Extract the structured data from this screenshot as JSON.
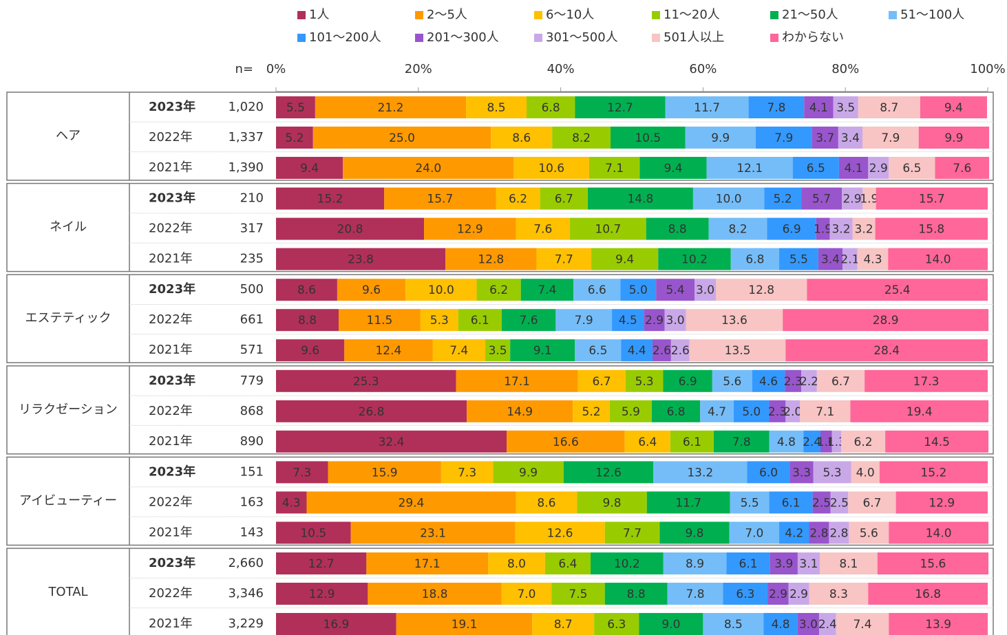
{
  "chart_data": {
    "type": "stacked_barh",
    "n_header": "n=",
    "groups": [
      "ヘア",
      "ネイル",
      "エステティック",
      "リラクゼーション",
      "アイビューティー",
      "TOTAL"
    ],
    "categories": [
      "2023年",
      "2022年",
      "2021年",
      "2023年",
      "2022年",
      "2021年",
      "2023年",
      "2022年",
      "2021年",
      "2023年",
      "2022年",
      "2021年",
      "2023年",
      "2022年",
      "2021年",
      "2023年",
      "2022年",
      "2021年"
    ],
    "n": [
      "1,020",
      "1,337",
      "1,390",
      "210",
      "317",
      "235",
      "500",
      "661",
      "571",
      "779",
      "868",
      "890",
      "151",
      "163",
      "143",
      "2,660",
      "3,346",
      "3,229"
    ],
    "xlim": [
      0,
      100
    ],
    "xticks": [
      {
        "value": 0,
        "label": "0%"
      },
      {
        "value": 20,
        "label": "20%"
      },
      {
        "value": 40,
        "label": "40%"
      },
      {
        "value": 60,
        "label": "60%"
      },
      {
        "value": 80,
        "label": "80%"
      },
      {
        "value": 100,
        "label": "100%"
      }
    ],
    "series": [
      {
        "name": "1人",
        "color": "#b0305a",
        "values": [
          5.5,
          5.2,
          9.4,
          15.2,
          20.8,
          23.8,
          8.6,
          8.8,
          9.6,
          25.3,
          26.8,
          32.4,
          7.3,
          4.3,
          10.5,
          12.7,
          12.9,
          16.9
        ],
        "value_labels": [
          "5.5",
          "5.2",
          "9.4",
          "15.2",
          "20.8",
          "23.8",
          "8.6",
          "8.8",
          "9.6",
          "25.3",
          "26.8",
          "32.4",
          "7.3",
          "4.3",
          "10.5",
          "12.7",
          "12.9",
          "16.9"
        ]
      },
      {
        "name": "2～5人",
        "color": "#ff9900",
        "values": [
          21.2,
          25.0,
          24.0,
          15.7,
          12.9,
          12.8,
          9.6,
          11.5,
          12.4,
          17.1,
          14.9,
          16.6,
          15.9,
          29.4,
          23.1,
          17.1,
          18.8,
          19.1
        ],
        "value_labels": [
          "21.2",
          "25.0",
          "24.0",
          "15.7",
          "12.9",
          "12.8",
          "9.6",
          "11.5",
          "12.4",
          "17.1",
          "14.9",
          "16.6",
          "15.9",
          "29.4",
          "23.1",
          "17.1",
          "18.8",
          "19.1"
        ]
      },
      {
        "name": "6～10人",
        "color": "#ffc000",
        "values": [
          8.5,
          8.6,
          10.6,
          6.2,
          7.6,
          7.7,
          10.0,
          5.3,
          7.4,
          6.7,
          5.2,
          6.4,
          7.3,
          8.6,
          12.6,
          8.0,
          7.0,
          8.7
        ],
        "value_labels": [
          "8.5",
          "8.6",
          "10.6",
          "6.2",
          "7.6",
          "7.7",
          "10.0",
          "5.3",
          "7.4",
          "6.7",
          "5.2",
          "6.4",
          "7.3",
          "8.6",
          "12.6",
          "8.0",
          "7.0",
          "8.7"
        ]
      },
      {
        "name": "11～20人",
        "color": "#99cc00",
        "values": [
          6.8,
          8.2,
          7.1,
          6.7,
          10.7,
          9.4,
          6.2,
          6.1,
          3.5,
          5.3,
          5.9,
          6.1,
          9.9,
          9.8,
          7.7,
          6.4,
          7.5,
          6.3
        ],
        "value_labels": [
          "6.8",
          "8.2",
          "7.1",
          "6.7",
          "10.7",
          "9.4",
          "6.2",
          "6.1",
          "3.5",
          "5.3",
          "5.9",
          "6.1",
          "9.9",
          "9.8",
          "7.7",
          "6.4",
          "7.5",
          "6.3"
        ]
      },
      {
        "name": "21～50人",
        "color": "#00b050",
        "values": [
          12.7,
          10.5,
          9.4,
          14.8,
          8.8,
          10.2,
          7.4,
          7.6,
          9.1,
          6.9,
          6.8,
          7.8,
          12.6,
          11.7,
          9.8,
          10.2,
          8.8,
          9.0
        ],
        "value_labels": [
          "12.7",
          "10.5",
          "9.4",
          "14.8",
          "8.8",
          "10.2",
          "7.4",
          "7.6",
          "9.1",
          "6.9",
          "6.8",
          "7.8",
          "12.6",
          "11.7",
          "9.8",
          "10.2",
          "8.8",
          "9.0"
        ]
      },
      {
        "name": "51～100人",
        "color": "#75bdf8",
        "values": [
          11.7,
          9.9,
          12.1,
          10.0,
          8.2,
          6.8,
          6.6,
          7.9,
          6.5,
          5.6,
          4.7,
          4.8,
          13.2,
          5.5,
          7.0,
          8.9,
          7.8,
          8.5
        ],
        "value_labels": [
          "11.7",
          "9.9",
          "12.1",
          "10.0",
          "8.2",
          "6.8",
          "6.6",
          "7.9",
          "6.5",
          "5.6",
          "4.7",
          "4.8",
          "13.2",
          "5.5",
          "7.0",
          "8.9",
          "7.8",
          "8.5"
        ]
      },
      {
        "name": "101～200人",
        "color": "#3399ff",
        "values": [
          7.8,
          7.9,
          6.5,
          5.2,
          6.9,
          5.5,
          5.0,
          4.5,
          4.4,
          4.6,
          5.0,
          2.4,
          6.0,
          6.1,
          4.2,
          6.1,
          6.3,
          4.8
        ],
        "value_labels": [
          "7.8",
          "7.9",
          "6.5",
          "5.2",
          "6.9",
          "5.5",
          "5.0",
          "4.5",
          "4.4",
          "4.6",
          "5.0",
          "2.4",
          "6.0",
          "6.1",
          "4.2",
          "6.1",
          "6.3",
          "4.8"
        ]
      },
      {
        "name": "201～300人",
        "color": "#9955cc",
        "values": [
          4.1,
          3.7,
          4.1,
          5.7,
          1.9,
          3.4,
          5.4,
          2.9,
          2.6,
          2.3,
          2.3,
          1.6,
          3.3,
          2.5,
          2.8,
          3.9,
          2.9,
          3.0
        ],
        "value_labels": [
          "4.1",
          "3.7",
          "4.1",
          "5.7",
          "1.9",
          "3.4",
          "5.4",
          "2.9",
          "2.6",
          "2.3",
          "2.3",
          "1.6",
          "3.3",
          "2.5",
          "2.8",
          "3.9",
          "2.9",
          "3.0"
        ]
      },
      {
        "name": "301～500人",
        "color": "#c9a8e8",
        "values": [
          3.5,
          3.4,
          2.9,
          2.9,
          3.2,
          2.1,
          3.0,
          3.0,
          2.6,
          2.2,
          2.0,
          1.3,
          5.3,
          2.5,
          2.8,
          3.1,
          2.9,
          2.4
        ],
        "value_labels": [
          "3.5",
          "3.4",
          "2.9",
          "2.9",
          "3.2",
          "2.1",
          "3.0",
          "3.0",
          "2.6",
          "2.2",
          "2.0",
          "1.3",
          "5.3",
          "2.5",
          "2.8",
          "3.1",
          "2.9",
          "2.4"
        ]
      },
      {
        "name": "501人以上",
        "color": "#f8c4c4",
        "values": [
          8.7,
          7.9,
          6.5,
          1.9,
          3.2,
          4.3,
          12.8,
          13.6,
          13.5,
          6.7,
          7.1,
          6.2,
          4.0,
          6.7,
          5.6,
          8.1,
          8.3,
          7.4
        ],
        "value_labels": [
          "8.7",
          "7.9",
          "6.5",
          "1.9",
          "3.2",
          "4.3",
          "12.8",
          "13.6",
          "13.5",
          "6.7",
          "7.1",
          "6.2",
          "4.0",
          "6.7",
          "5.6",
          "8.1",
          "8.3",
          "7.4"
        ]
      },
      {
        "name": "わからない",
        "color": "#ff6699",
        "values": [
          9.4,
          9.9,
          7.6,
          15.7,
          15.8,
          14.0,
          25.4,
          28.9,
          28.4,
          17.3,
          19.4,
          14.5,
          15.2,
          12.9,
          14.0,
          15.6,
          16.8,
          13.9
        ],
        "value_labels": [
          "9.4",
          "9.9",
          "7.6",
          "15.7",
          "15.8",
          "14.0",
          "25.4",
          "28.9",
          "28.4",
          "17.3",
          "19.4",
          "14.5",
          "15.2",
          "12.9",
          "14.0",
          "15.6",
          "16.8",
          "13.9"
        ]
      }
    ]
  }
}
